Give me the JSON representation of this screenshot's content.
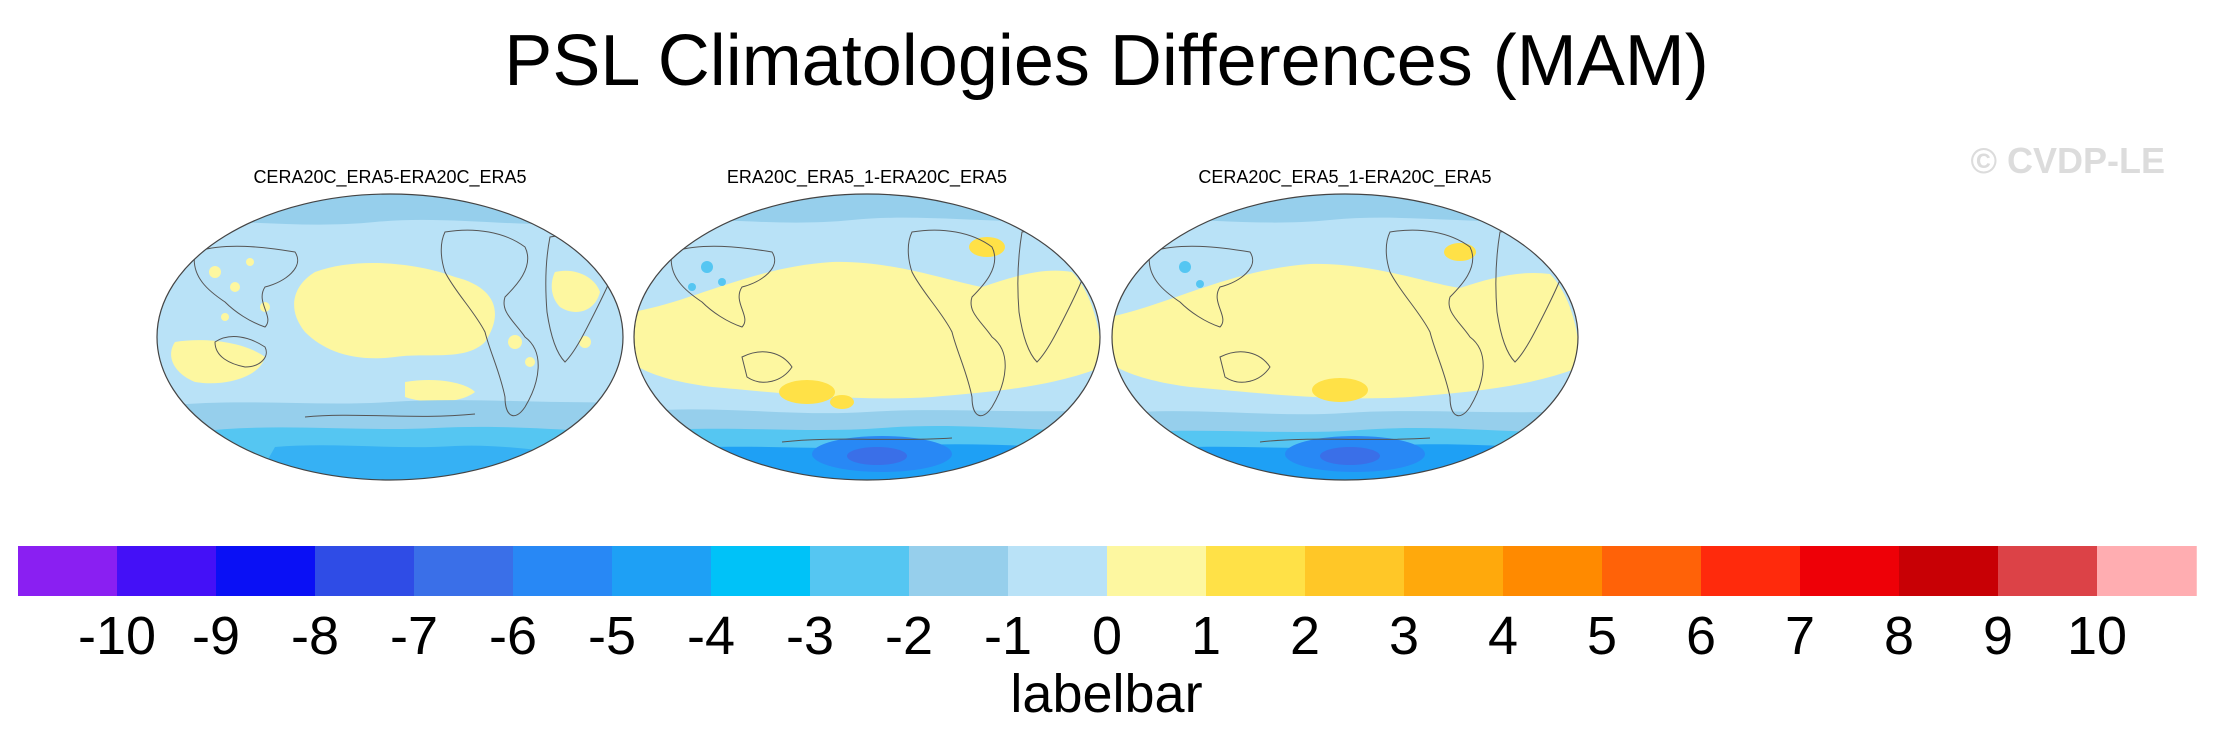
{
  "title": "PSL Climatologies Differences (MAM)",
  "watermark": "© CVDP-LE",
  "panels": [
    {
      "title": "CERA20C_ERA5-ERA20C_ERA5",
      "style": "mild"
    },
    {
      "title": "ERA20C_ERA5_1-ERA20C_ERA5",
      "style": "strong"
    },
    {
      "title": "CERA20C_ERA5_1-ERA20C_ERA5",
      "style": "strong"
    }
  ],
  "labelbar": {
    "title": "labelbar",
    "ticks": [
      "-10",
      "-9",
      "-8",
      "-7",
      "-6",
      "-5",
      "-4",
      "-3",
      "-2",
      "-1",
      "0",
      "1",
      "2",
      "3",
      "4",
      "5",
      "6",
      "7",
      "8",
      "9",
      "10"
    ],
    "colors": [
      "#8a1ff2",
      "#4410f7",
      "#0a10f5",
      "#2f4ce6",
      "#3a6fe8",
      "#2888f5",
      "#1ea0f5",
      "#00c2f8",
      "#55c6f2",
      "#96cfec",
      "#b9e2f7",
      "#fdf7a0",
      "#ffe147",
      "#ffc727",
      "#ffa90c",
      "#ff8a00",
      "#ff6208",
      "#ff2a0c",
      "#ee0007",
      "#c80005",
      "#dc4247",
      "#ffadb1"
    ]
  },
  "colors": {
    "ocean_base": "#b9e2f7",
    "positive_light": "#fdf7a0",
    "positive_mid": "#ffe147",
    "negative_1": "#96cfec",
    "negative_2": "#55c6f2",
    "negative_3": "#1ea0f5",
    "negative_4": "#2888f5",
    "coast": "#555555"
  }
}
